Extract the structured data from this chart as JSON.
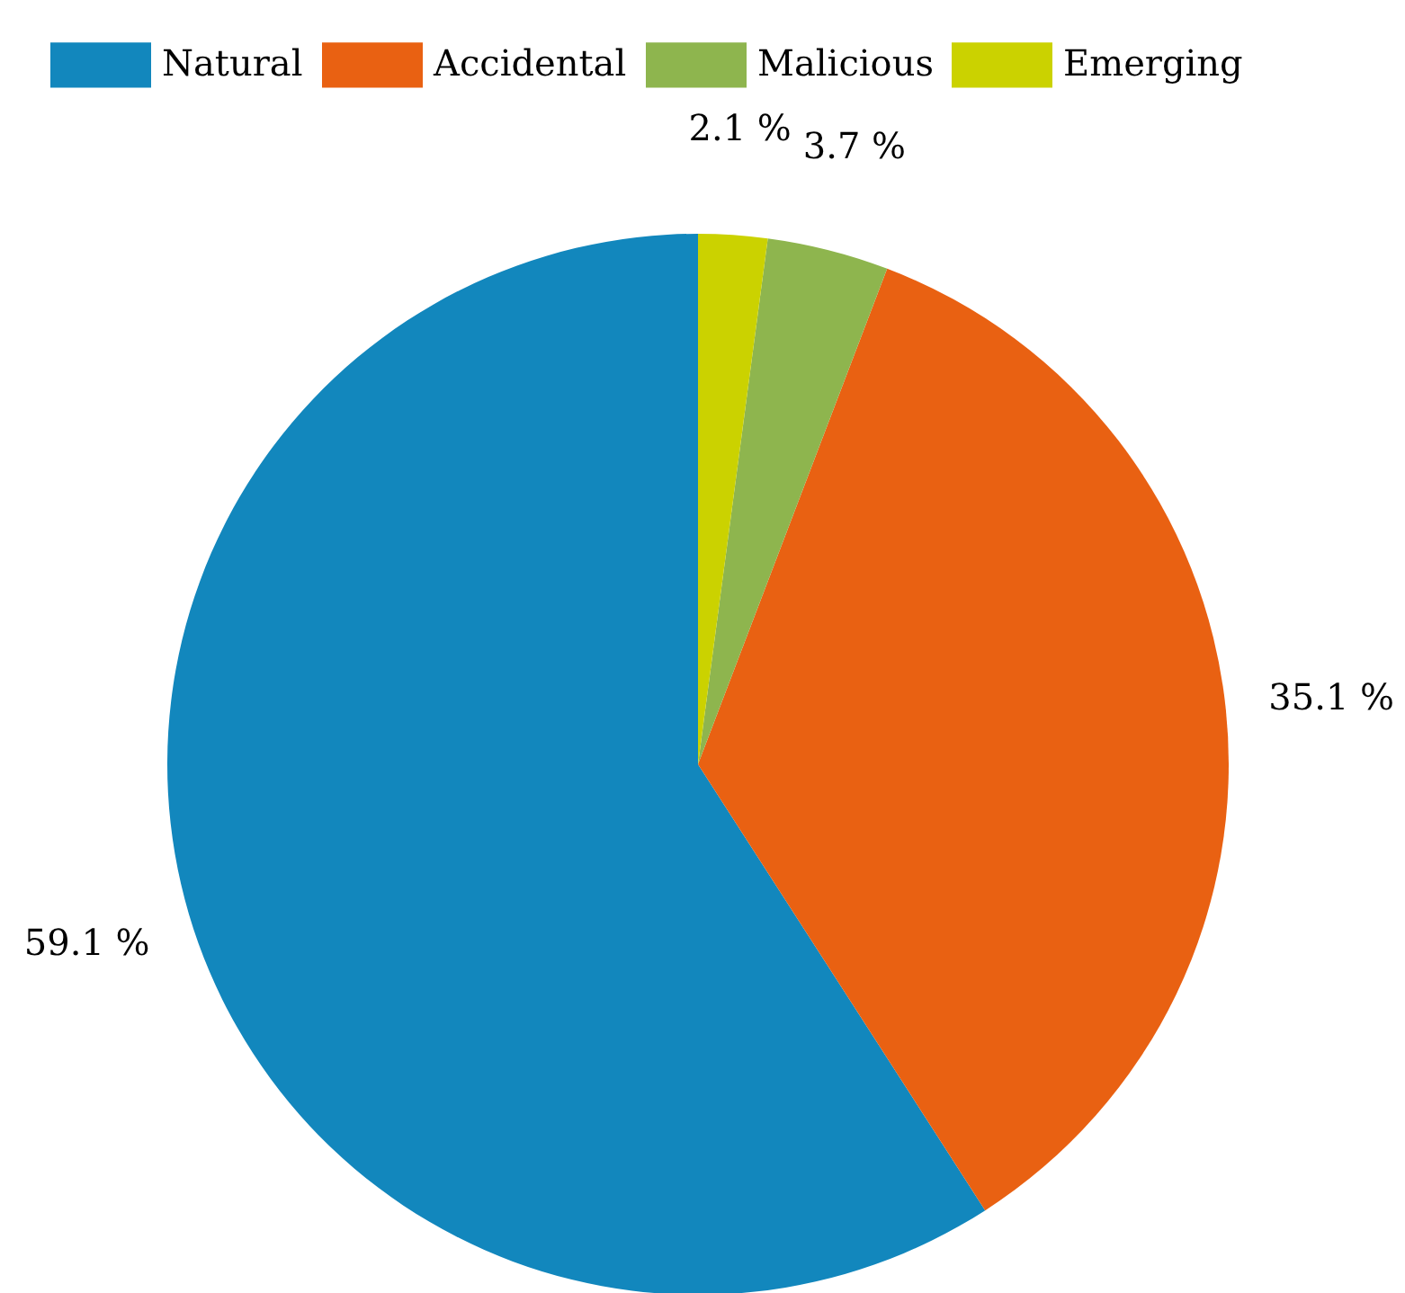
{
  "chart_data": {
    "type": "pie",
    "categories": [
      "Natural",
      "Accidental",
      "Malicious",
      "Emerging"
    ],
    "values": [
      59.1,
      35.1,
      3.7,
      2.1
    ],
    "colors": [
      "#1287bd",
      "#e96112",
      "#8eb54e",
      "#cbd200"
    ],
    "value_labels": [
      "59.1 %",
      "35.1 %",
      "3.7 %",
      "2.1 %"
    ],
    "legend": "top"
  }
}
